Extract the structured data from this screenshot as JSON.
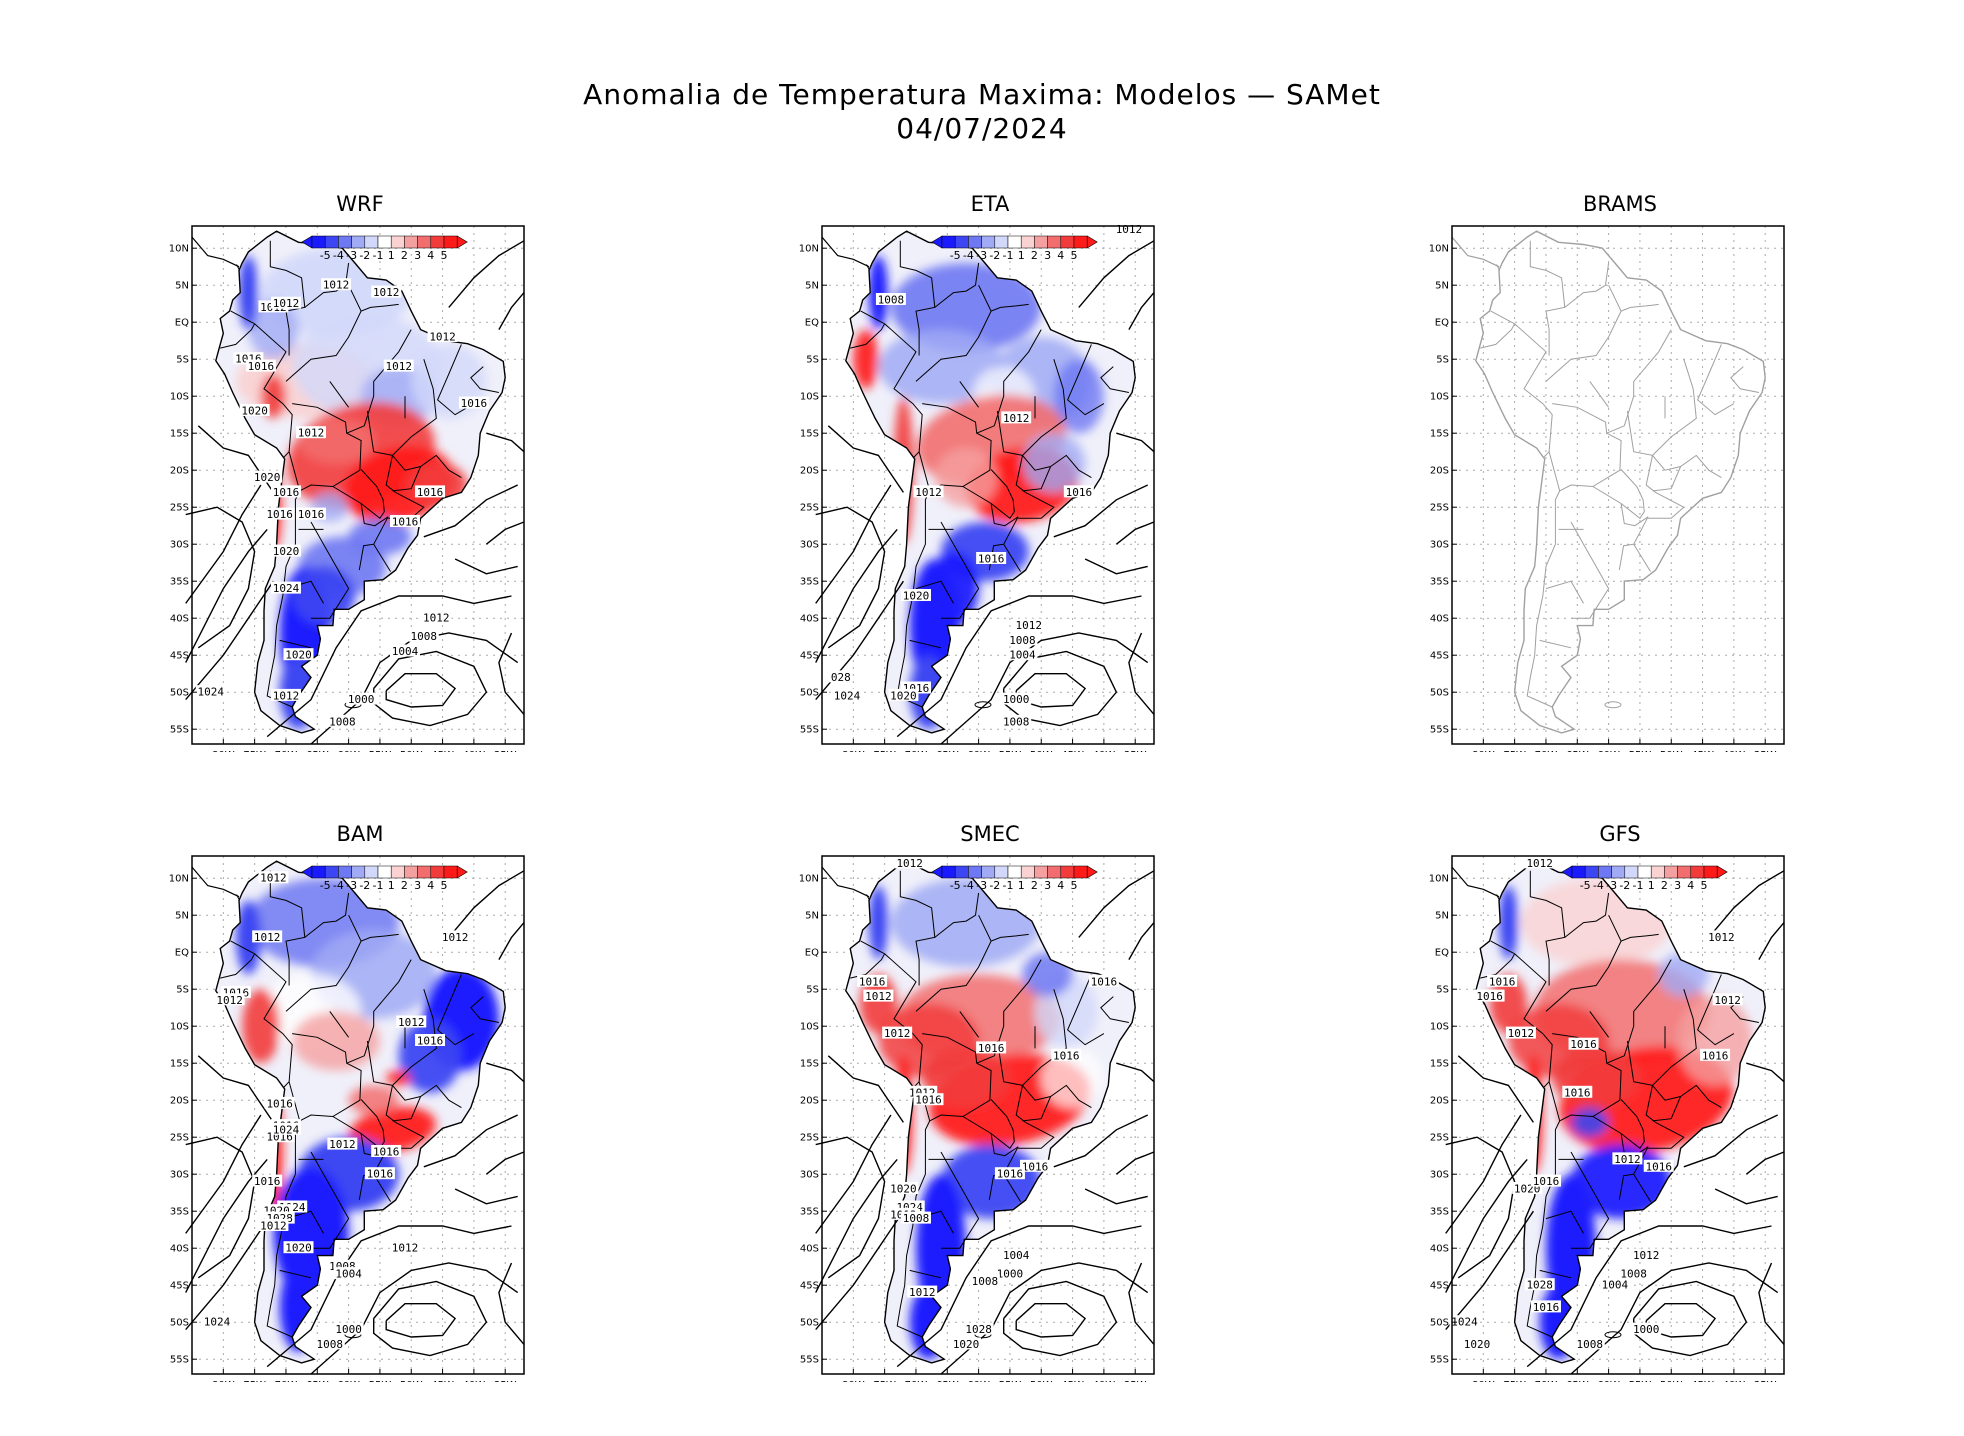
{
  "title": {
    "line1": "Anomalia de Temperatura Maxima: Modelos — SAMet",
    "line2": "04/07/2024"
  },
  "colorbar": {
    "labels": [
      "-5",
      "-4",
      "-3",
      "-2",
      "-1",
      "1",
      "2",
      "3",
      "4",
      "5"
    ],
    "colors": [
      "#1a1aff",
      "#3c46f2",
      "#6e78f2",
      "#a0aaf5",
      "#d2d8fa",
      "#ffffff",
      "#fad2d2",
      "#f5a0a0",
      "#f26e6e",
      "#f23c3c",
      "#ff1a1a"
    ]
  },
  "axes": {
    "lat_labels": [
      "10N",
      "5N",
      "EQ",
      "5S",
      "10S",
      "15S",
      "20S",
      "25S",
      "30S",
      "35S",
      "40S",
      "45S",
      "50S",
      "55S"
    ],
    "lon_labels": [
      "80W",
      "75W",
      "70W",
      "65W",
      "60W",
      "55W",
      "50W",
      "45W",
      "40W",
      "35W"
    ]
  },
  "panels": [
    {
      "name": "WRF",
      "has_data": true,
      "isobar_labels": [
        "1012",
        "1012",
        "1012",
        "1012",
        "1012",
        "1012",
        "1016",
        "1016",
        "1016",
        "1016",
        "1016",
        "1016",
        "1016",
        "1016",
        "1020",
        "1020",
        "1020",
        "1020",
        "1024",
        "1024",
        "1012",
        "1008",
        "1004",
        "1000",
        "1008",
        "1012",
        "1012"
      ]
    },
    {
      "name": "ETA",
      "has_data": true,
      "isobar_labels": [
        "1012",
        "1008",
        "1012",
        "1016",
        "1012",
        "1016",
        "1020",
        "1012",
        "1008",
        "1004",
        "1000",
        "1008",
        "1016",
        "1020",
        "1024",
        "028"
      ]
    },
    {
      "name": "BRAMS",
      "has_data": false,
      "isobar_labels": []
    },
    {
      "name": "BAM",
      "has_data": true,
      "isobar_labels": [
        "1012",
        "1012",
        "1012",
        "1016",
        "1012",
        "1016",
        "1012",
        "1016",
        "1016",
        "1016",
        "1024",
        "1016",
        "1012",
        "1016",
        "1016",
        "1024",
        "1020",
        "1028",
        "1020",
        "1012",
        "1008",
        "1004",
        "1000",
        "1008",
        "1024",
        "1012"
      ]
    },
    {
      "name": "SMEC",
      "has_data": true,
      "isobar_labels": [
        "1012",
        "1012",
        "1016",
        "1016",
        "1012",
        "1012",
        "1016",
        "1016",
        "1012",
        "1016",
        "1016",
        "1016",
        "1020",
        "1024",
        "1012",
        "1008",
        "1004",
        "1000",
        "1008",
        "1028",
        "1020",
        "1012"
      ]
    },
    {
      "name": "GFS",
      "has_data": true,
      "isobar_labels": [
        "1012",
        "1012",
        "1016",
        "1016",
        "1012",
        "1012",
        "1016",
        "1016",
        "1012",
        "1016",
        "1016",
        "1020",
        "1012",
        "1008",
        "1004",
        "1000",
        "1008",
        "1028",
        "1016",
        "1024",
        "1020",
        "1016"
      ]
    }
  ]
}
